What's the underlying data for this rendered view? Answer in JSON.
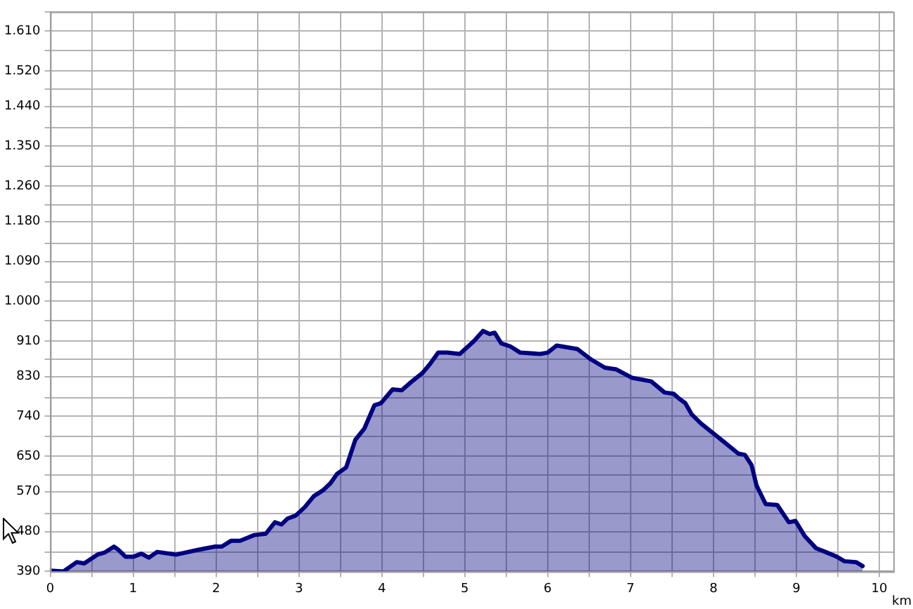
{
  "chart_data": {
    "type": "area",
    "xlabel": "km",
    "x": [
      0,
      0.16,
      0.32,
      0.41,
      0.57,
      0.66,
      0.77,
      0.82,
      0.91,
      1.0,
      1.1,
      1.19,
      1.29,
      1.52,
      1.79,
      1.99,
      2.07,
      2.18,
      2.29,
      2.46,
      2.6,
      2.71,
      2.79,
      2.86,
      2.96,
      3.07,
      3.18,
      3.29,
      3.38,
      3.46,
      3.57,
      3.68,
      3.79,
      3.91,
      3.99,
      4.13,
      4.24,
      4.35,
      4.49,
      4.58,
      4.68,
      4.79,
      4.94,
      5.11,
      5.22,
      5.3,
      5.36,
      5.44,
      5.55,
      5.67,
      5.91,
      6.0,
      6.11,
      6.36,
      6.52,
      6.69,
      6.83,
      7.02,
      7.25,
      7.41,
      7.52,
      7.58,
      7.66,
      7.74,
      7.85,
      7.99,
      8.13,
      8.3,
      8.38,
      8.46,
      8.52,
      8.63,
      8.77,
      8.91,
      8.99,
      9.1,
      9.24,
      9.35,
      9.49,
      9.58,
      9.72,
      9.8
    ],
    "series": [
      {
        "color": "#000080",
        "values": [
          392,
          390,
          411,
          408,
          428,
          433,
          446,
          439,
          423,
          423,
          430,
          421,
          434,
          428,
          439,
          446,
          446,
          459,
          459,
          472,
          475,
          501,
          496,
          509,
          516,
          535,
          560,
          573,
          589,
          610,
          625,
          687,
          713,
          765,
          770,
          801,
          799,
          817,
          838,
          858,
          884,
          884,
          881,
          910,
          933,
          926,
          929,
          905,
          898,
          884,
          881,
          884,
          900,
          892,
          869,
          850,
          846,
          827,
          819,
          794,
          791,
          781,
          770,
          744,
          724,
          703,
          682,
          656,
          653,
          630,
          584,
          542,
          540,
          501,
          504,
          470,
          442,
          434,
          423,
          413,
          411,
          402
        ]
      }
    ],
    "xlim": [
      0,
      10.17
    ],
    "ylim": [
      390,
      1653.6
    ],
    "xticks": [
      0,
      {
        "value": 0.5,
        "label": null
      },
      1,
      {
        "value": 1.5,
        "label": null
      },
      2,
      {
        "value": 2.5,
        "label": null
      },
      3,
      {
        "value": 3.5,
        "label": null
      },
      4,
      {
        "value": 4.5,
        "label": null
      },
      5,
      {
        "value": 5.5,
        "label": null
      },
      6,
      {
        "value": 6.5,
        "label": null
      },
      7,
      {
        "value": 7.5,
        "label": null
      },
      8,
      {
        "value": 8.5,
        "label": null
      },
      9,
      {
        "value": 9.5,
        "label": null
      },
      10
    ],
    "yticks": [
      390,
      {
        "value": 433.6,
        "label": null
      },
      480,
      {
        "value": 520.7,
        "label": null
      },
      570,
      {
        "value": 607.9,
        "label": null
      },
      650,
      {
        "value": 695,
        "label": null
      },
      740,
      {
        "value": 782.1,
        "label": null
      },
      830,
      {
        "value": 869.3,
        "label": null
      },
      910,
      {
        "value": 956.4,
        "label": null
      },
      {
        "value": 1000,
        "label": "1.000"
      },
      {
        "value": 1043.6,
        "label": null
      },
      {
        "value": 1090,
        "label": "1.090"
      },
      {
        "value": 1130.7,
        "label": null
      },
      {
        "value": 1180,
        "label": "1.180"
      },
      {
        "value": 1217.9,
        "label": null
      },
      {
        "value": 1260,
        "label": "1.260"
      },
      {
        "value": 1305,
        "label": null
      },
      {
        "value": 1350,
        "label": "1.350"
      },
      {
        "value": 1392.1,
        "label": null
      },
      {
        "value": 1440,
        "label": "1.440"
      },
      {
        "value": 1479.3,
        "label": null
      },
      {
        "value": 1520,
        "label": "1.520"
      },
      {
        "value": 1566.4,
        "label": null
      },
      {
        "value": 1610,
        "label": "1.610"
      },
      {
        "value": 1653.6,
        "label": null
      }
    ],
    "grid": true,
    "legend": false,
    "marker": "none",
    "line_style": "solid"
  }
}
